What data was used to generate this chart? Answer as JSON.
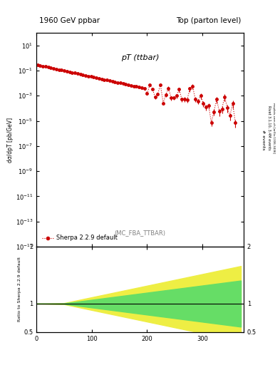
{
  "title_left": "1960 GeV ppbar",
  "title_right": "Top (parton level)",
  "main_label": "pT (ttbar)",
  "sublabel": "(MC_FBA_TTBAR)",
  "right_label": "Rivet 3.1.10, 3.4M events",
  "right_label2": "mcplots.cern.ch [arXiv:1306.3436]",
  "legend_label": "Sherpa 2.2.9 default",
  "ylabel_ratio": "Ratio to Sherpa 2.2.9 default",
  "xlim": [
    0,
    375
  ],
  "ylim_main_log_min": -15,
  "ylim_main_log_max": 2,
  "ylim_ratio": [
    0.5,
    2.0
  ],
  "line_color": "#cc0000",
  "green_color": "#66dd66",
  "yellow_color": "#eeee44",
  "background_color": "#ffffff"
}
